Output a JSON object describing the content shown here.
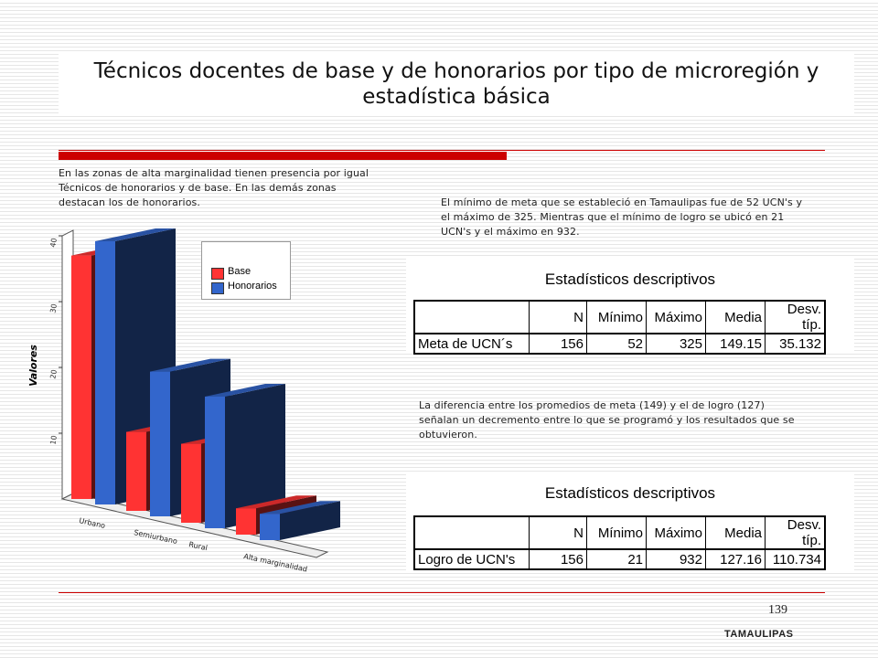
{
  "slide": {
    "title": "Técnicos docentes de base y de honorarios por tipo de microregión y estadística básica",
    "page_number": "139",
    "footer": "TAMAULIPAS"
  },
  "text": {
    "left_paragraph": "En las zonas de alta marginalidad tienen presencia por igual Técnicos de honorarios y  de base. En las demás zonas destacan los de honorarios.",
    "right_paragraph_1": "El mínimo de meta que se estableció en Tamaulipas fue de 52  UCN's y el máximo de 325. Mientras que el mínimo de logro se ubicó en 21 UCN's y el máximo en 932.",
    "right_paragraph_2": "La diferencia entre los promedios de meta (149) y el de logro (127) señalan un decremento entre lo que se programó y los resultados que se obtuvieron."
  },
  "colors": {
    "base": "#ff3333",
    "honorarios": "#3366cc",
    "accent_red": "#cc0000"
  },
  "chart_data": {
    "type": "bar",
    "ylabel": "Valores",
    "ylim": [
      0,
      40
    ],
    "yticks": [
      "10",
      "20",
      "30",
      "40"
    ],
    "categories": [
      "Urbano",
      "Semiurbano",
      "Rural",
      "Alta marginalidad"
    ],
    "series": [
      {
        "name": "Base",
        "values": [
          37,
          12,
          12,
          4
        ]
      },
      {
        "name": "Honorarios",
        "values": [
          40,
          22,
          20,
          4
        ]
      }
    ],
    "legend_position": "top-right",
    "grid": false
  },
  "tables": [
    {
      "title": "Estadísticos descriptivos",
      "headers": [
        "",
        "N",
        "Mínimo",
        "Máximo",
        "Media",
        "Desv. típ."
      ],
      "row": [
        "Meta de UCN´s",
        "156",
        "52",
        "325",
        "149.15",
        "35.132"
      ]
    },
    {
      "title": "Estadísticos descriptivos",
      "headers": [
        "",
        "N",
        "Mínimo",
        "Máximo",
        "Media",
        "Desv. típ."
      ],
      "row": [
        "Logro de UCN's",
        "156",
        "21",
        "932",
        "127.16",
        "110.734"
      ]
    }
  ]
}
